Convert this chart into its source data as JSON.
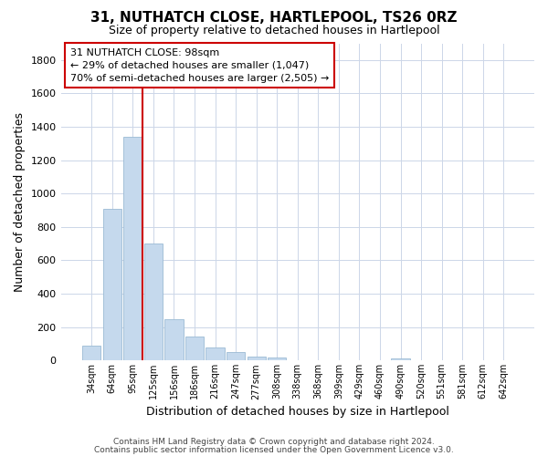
{
  "title": "31, NUTHATCH CLOSE, HARTLEPOOL, TS26 0RZ",
  "subtitle": "Size of property relative to detached houses in Hartlepool",
  "xlabel": "Distribution of detached houses by size in Hartlepool",
  "ylabel": "Number of detached properties",
  "bar_labels": [
    "34sqm",
    "64sqm",
    "95sqm",
    "125sqm",
    "156sqm",
    "186sqm",
    "216sqm",
    "247sqm",
    "277sqm",
    "308sqm",
    "338sqm",
    "368sqm",
    "399sqm",
    "429sqm",
    "460sqm",
    "490sqm",
    "520sqm",
    "551sqm",
    "581sqm",
    "612sqm",
    "642sqm"
  ],
  "bar_values": [
    90,
    910,
    1340,
    700,
    250,
    145,
    80,
    52,
    25,
    18,
    0,
    0,
    0,
    0,
    0,
    15,
    0,
    0,
    0,
    0,
    0
  ],
  "bar_color": "#c5d9ed",
  "bar_edge_color": "#9bbbd4",
  "ylim": [
    0,
    1900
  ],
  "yticks": [
    0,
    200,
    400,
    600,
    800,
    1000,
    1200,
    1400,
    1600,
    1800
  ],
  "red_line_bar_index": 2,
  "property_line_color": "#cc0000",
  "annotation_title": "31 NUTHATCH CLOSE: 98sqm",
  "annotation_line1": "← 29% of detached houses are smaller (1,047)",
  "annotation_line2": "70% of semi-detached houses are larger (2,505) →",
  "annotation_box_color": "#ffffff",
  "annotation_box_edge": "#cc0000",
  "footer1": "Contains HM Land Registry data © Crown copyright and database right 2024.",
  "footer2": "Contains public sector information licensed under the Open Government Licence v3.0.",
  "background_color": "#ffffff",
  "grid_color": "#ccd6e8"
}
